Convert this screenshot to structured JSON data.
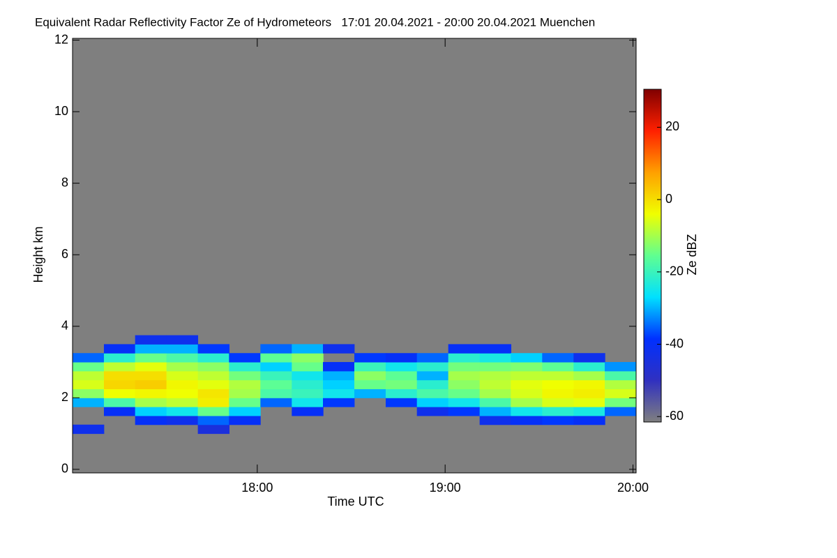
{
  "chart_data": {
    "type": "heatmap",
    "title": "Equivalent Radar Reflectivity Factor Ze of Hydrometeors   17:01 20.04.2021 - 20:00 20.04.2021 Muenchen",
    "xlabel": "Time UTC",
    "ylabel": "Height km",
    "colorbar_label": "Ze dBZ",
    "x": [
      17.1,
      17.267,
      17.433,
      17.6,
      17.767,
      17.933,
      18.1,
      18.267,
      18.433,
      18.6,
      18.767,
      18.933,
      19.1,
      19.267,
      19.433,
      19.6,
      19.767,
      19.933
    ],
    "y": [
      1.125,
      1.375,
      1.625,
      1.875,
      2.125,
      2.375,
      2.625,
      2.875,
      3.125,
      3.375,
      3.625
    ],
    "z": [
      [
        -42,
        null,
        null,
        -30,
        -12,
        -6,
        -8,
        -15,
        -35,
        null,
        null
      ],
      [
        null,
        null,
        -40,
        -18,
        -4,
        1,
        0,
        -8,
        -22,
        -40,
        null
      ],
      [
        null,
        -40,
        -28,
        -10,
        -3,
        2,
        0,
        -5,
        -15,
        -30,
        -42
      ],
      [
        null,
        -42,
        -25,
        -8,
        -4,
        -3,
        -6,
        -10,
        -18,
        -30,
        -42
      ],
      [
        -45,
        -35,
        -15,
        -2,
        -1,
        -5,
        -8,
        -12,
        -22,
        -38,
        null
      ],
      [
        null,
        -40,
        -28,
        -15,
        -10,
        -9,
        -14,
        -22,
        -38,
        null,
        null
      ],
      [
        null,
        null,
        null,
        -35,
        -18,
        -16,
        -20,
        -28,
        -16,
        -35,
        null
      ],
      [
        null,
        null,
        -40,
        -25,
        -20,
        -22,
        -25,
        -15,
        -12,
        -30,
        null
      ],
      [
        null,
        null,
        null,
        -38,
        -25,
        -28,
        -30,
        -40,
        null,
        -42,
        null
      ],
      [
        null,
        null,
        null,
        null,
        -30,
        -15,
        -12,
        -20,
        -38,
        null,
        null
      ],
      [
        null,
        null,
        null,
        -38,
        -22,
        -14,
        -16,
        -25,
        -40,
        null,
        null
      ],
      [
        null,
        null,
        -42,
        -28,
        -18,
        -22,
        -30,
        -22,
        -35,
        null,
        null
      ],
      [
        null,
        null,
        -38,
        -25,
        -15,
        -12,
        -10,
        -14,
        -22,
        -40,
        null
      ],
      [
        null,
        -42,
        -30,
        -18,
        -10,
        -8,
        -9,
        -14,
        -24,
        -40,
        null
      ],
      [
        null,
        -40,
        -25,
        -10,
        -6,
        -5,
        -8,
        -13,
        -28,
        null,
        null
      ],
      [
        null,
        -38,
        -22,
        -6,
        -3,
        -4,
        -8,
        -16,
        -35,
        null,
        null
      ],
      [
        null,
        -40,
        -24,
        -5,
        -2,
        -3,
        -10,
        -22,
        -42,
        null,
        null
      ],
      [
        null,
        null,
        -35,
        -14,
        -6,
        -9,
        -18,
        -32,
        null,
        null,
        null
      ]
    ],
    "xlim": [
      17.0167,
      20.0167
    ],
    "xticks": [
      {
        "value": 18,
        "label": "18:00"
      },
      {
        "value": 19,
        "label": "19:00"
      },
      {
        "value": 20,
        "label": "20:00"
      }
    ],
    "ylim": [
      -0.1,
      12.05
    ],
    "yticks": [
      0,
      2,
      4,
      6,
      8,
      10,
      12
    ],
    "zlim": [
      -61.5,
      30.5
    ],
    "zticks": [
      -60,
      -40,
      -20,
      0,
      20
    ],
    "colorscale": [
      "#7f7f7f",
      "#3030c0",
      "#0030ff",
      "#00e0ff",
      "#60ff90",
      "#f0ff00",
      "#ffa000",
      "#ff2000",
      "#800000"
    ]
  }
}
